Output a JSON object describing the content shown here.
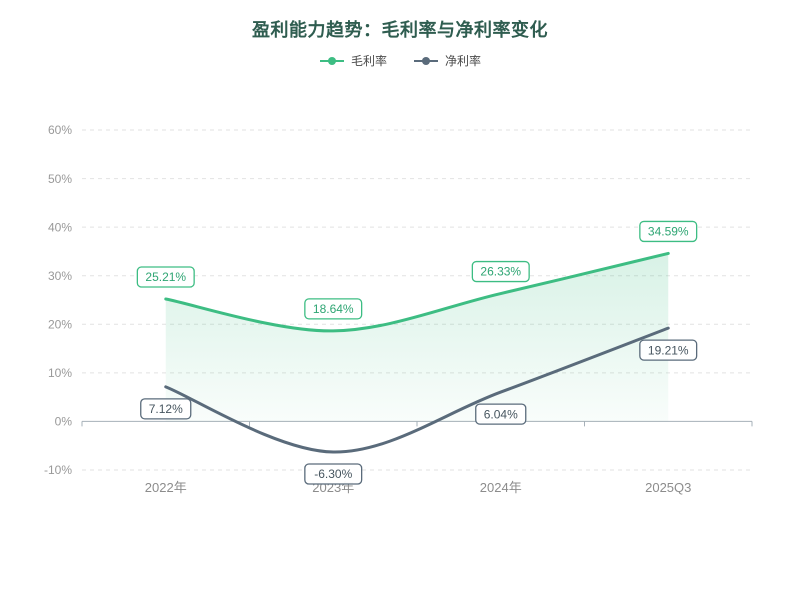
{
  "chart_data": {
    "type": "line",
    "title": "盈利能力趋势：毛利率与净利率变化",
    "categories": [
      "2022年",
      "2023年",
      "2024年",
      "2025Q3"
    ],
    "series": [
      {
        "name": "毛利率",
        "values": [
          25.21,
          18.64,
          26.33,
          34.59
        ],
        "labels": [
          "25.21%",
          "18.64%",
          "26.33%",
          "34.59%"
        ],
        "color": "#3dbd83",
        "label_color": "#2ea573",
        "area": true,
        "label_position": "above"
      },
      {
        "name": "净利率",
        "values": [
          7.12,
          -6.3,
          6.04,
          19.21
        ],
        "labels": [
          "7.12%",
          "-6.30%",
          "6.04%",
          "19.21%"
        ],
        "color": "#5a6b7b",
        "label_color": "#46555f",
        "area": false,
        "label_position": "below"
      }
    ],
    "ylim": [
      -10,
      60
    ],
    "yticks": [
      {
        "value": 60,
        "label": "60%"
      },
      {
        "value": 50,
        "label": "50%"
      },
      {
        "value": 40,
        "label": "40%"
      },
      {
        "value": 30,
        "label": "30%"
      },
      {
        "value": 20,
        "label": "20%"
      },
      {
        "value": 10,
        "label": "10%"
      },
      {
        "value": 0,
        "label": "0%"
      },
      {
        "value": -10,
        "label": "-10%"
      }
    ],
    "grid": "dashed horizontal",
    "legend_position": "top",
    "smooth": true
  },
  "colors": {
    "title": "#2f5d50",
    "legend_text": "#4a4a4a",
    "axis_label": "#999999",
    "x_label": "#8c8c8c",
    "grid": "#e2e2e2",
    "zero_line": "#a6b0b8",
    "background": "#ffffff",
    "area_fill_top": "rgba(61,189,131,0.20)",
    "area_fill_bottom": "rgba(61,189,131,0.03)",
    "label_box_fill": "#ffffff"
  }
}
